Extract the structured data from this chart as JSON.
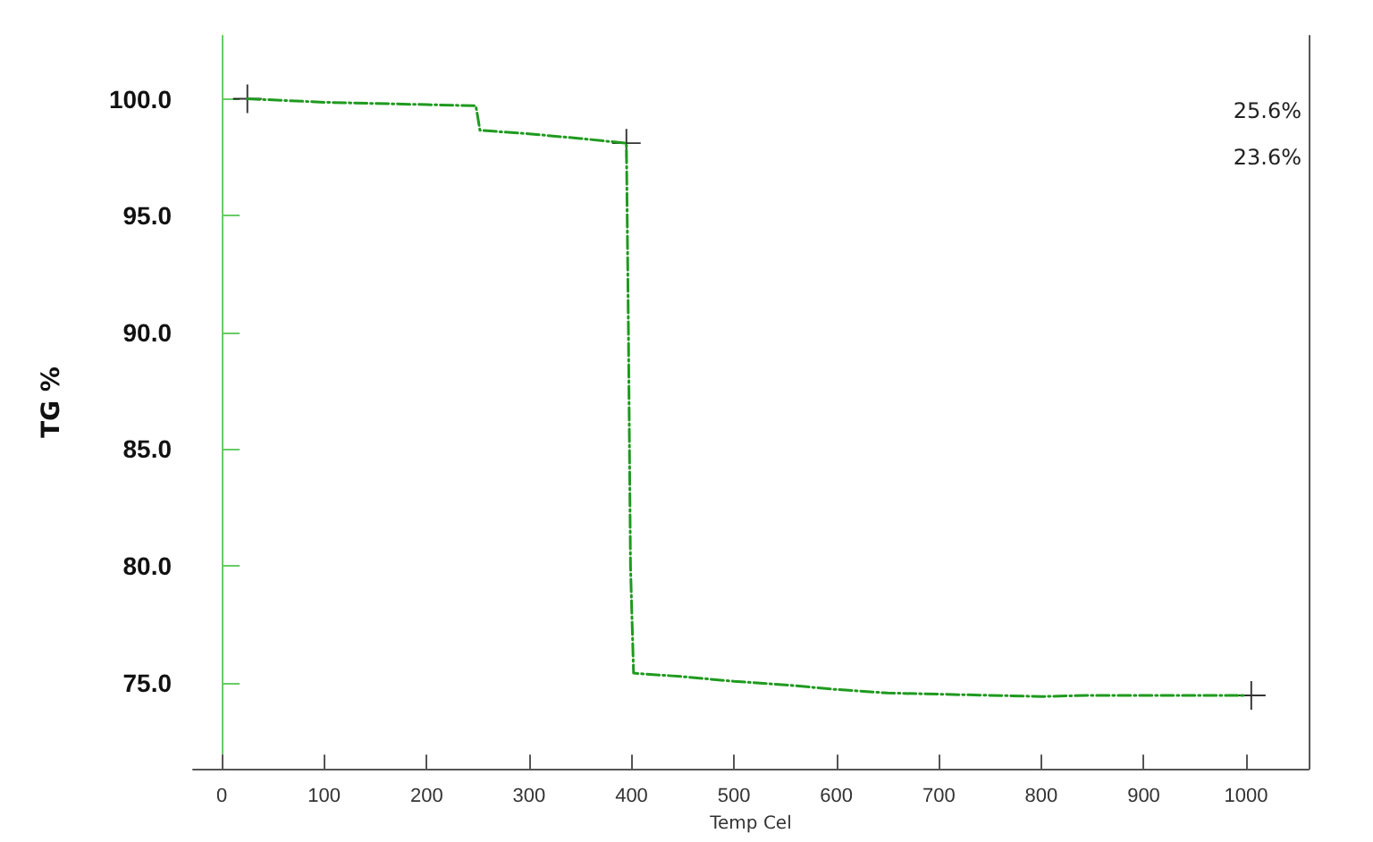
{
  "chart_data": {
    "type": "line",
    "xlabel": "Temp Cel",
    "ylabel": "TG %",
    "xlim": [
      -28,
      1061
    ],
    "xticks": [
      0,
      100,
      200,
      300,
      400,
      500,
      600,
      700,
      800,
      900,
      1000
    ],
    "ylim": [
      71.3,
      102.7
    ],
    "yticks": [
      {
        "value": 75,
        "label": "75.0"
      },
      {
        "value": 80,
        "label": "80.0"
      },
      {
        "value": 85,
        "label": "85.0"
      },
      {
        "value": 90,
        "label": "90.0"
      },
      {
        "value": 95,
        "label": "95.0"
      },
      {
        "value": 100,
        "label": "100.0"
      }
    ],
    "grid": false,
    "line_style": "dashed",
    "marker": "none",
    "series": [
      {
        "color": "#1f9a1f",
        "x": [
          25,
          100,
          150,
          200,
          248,
          250,
          252,
          300,
          350,
          395,
          397,
          399,
          402,
          450,
          500,
          550,
          600,
          650,
          700,
          750,
          800,
          850,
          900,
          1000
        ],
        "values": [
          100.0,
          99.85,
          99.8,
          99.75,
          99.7,
          99.2,
          98.65,
          98.5,
          98.3,
          98.1,
          90,
          80,
          75.4,
          75.25,
          75.05,
          74.9,
          74.7,
          74.55,
          74.5,
          74.45,
          74.4,
          74.45,
          74.45,
          74.45
        ]
      },
      {
        "type": "scatter",
        "marker": "cross",
        "color": "#000000",
        "x": [
          25,
          395,
          1005
        ],
        "values": [
          100.0,
          98.1,
          74.45
        ]
      }
    ],
    "annotations": [
      "25.6%",
      "23.6%"
    ]
  }
}
